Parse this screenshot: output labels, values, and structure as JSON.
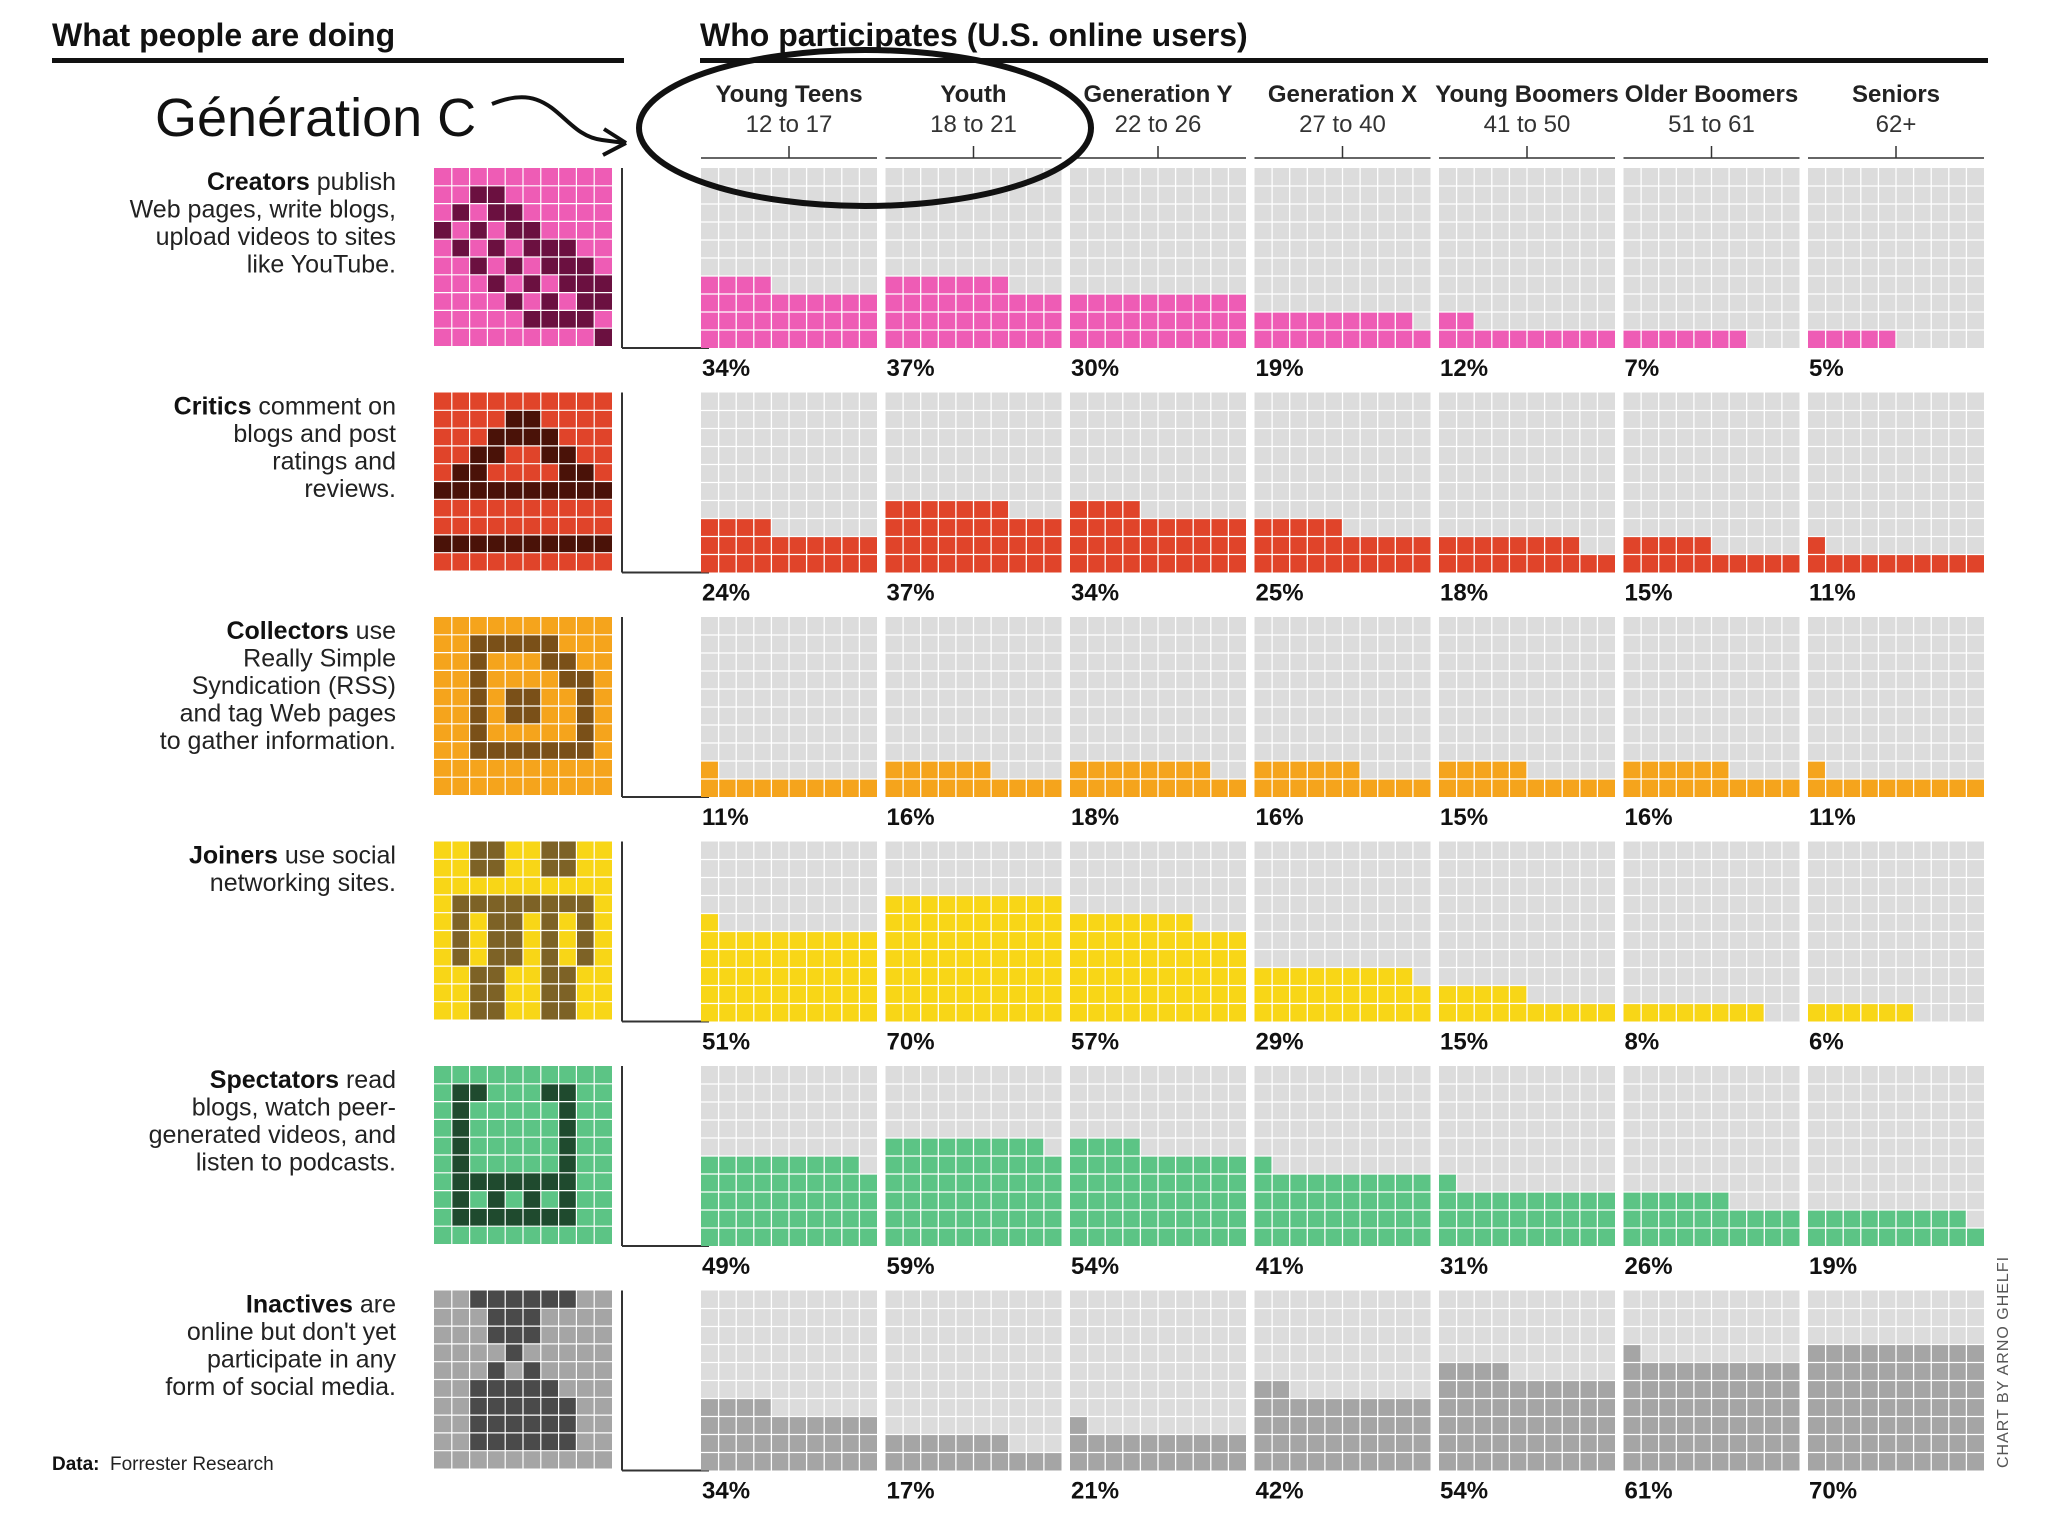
{
  "titles": {
    "left": "What people are doing",
    "right": "Who participates (U.S. online users)"
  },
  "annotation": {
    "text": "Génération C"
  },
  "source": {
    "label": "Data:",
    "value": "Forrester Research"
  },
  "credit": "CHART BY ARNO GHELFI",
  "colors": {
    "grid_bg": "#dcdcdc",
    "grid_line": "#ffffff",
    "axis": "#333333"
  },
  "chart_data": {
    "type": "table",
    "title": "Who participates (U.S. online users)",
    "unit": "% of age group",
    "columns": [
      {
        "name": "Young Teens",
        "range": "12 to 17"
      },
      {
        "name": "Youth",
        "range": "18 to 21"
      },
      {
        "name": "Generation Y",
        "range": "22 to 26"
      },
      {
        "name": "Generation X",
        "range": "27 to 40"
      },
      {
        "name": "Young Boomers",
        "range": "41 to 50"
      },
      {
        "name": "Older Boomers",
        "range": "51 to 61"
      },
      {
        "name": "Seniors",
        "range": "62+"
      }
    ],
    "rows": [
      {
        "name": "Creators",
        "description": [
          "Creators publish",
          "Web pages, write blogs,",
          "upload videos to sites",
          "like YouTube."
        ],
        "color": "#ee5cb5",
        "dark_color": "#6b1040",
        "icon": "creators-icon",
        "values": [
          34,
          37,
          30,
          19,
          12,
          7,
          5
        ],
        "labels": [
          "34%",
          "37%",
          "30%",
          "19%",
          "12%",
          "7%",
          "5%"
        ]
      },
      {
        "name": "Critics",
        "description": [
          "Critics comment on",
          "blogs and post",
          "ratings and",
          "reviews."
        ],
        "color": "#e0442a",
        "dark_color": "#4a1208",
        "icon": "critics-icon",
        "values": [
          24,
          37,
          34,
          25,
          18,
          15,
          11
        ],
        "labels": [
          "24%",
          "37%",
          "34%",
          "25%",
          "18%",
          "15%",
          "11%"
        ]
      },
      {
        "name": "Collectors",
        "description": [
          "Collectors use",
          "Really Simple",
          "Syndication (RSS)",
          "and tag Web pages",
          "to gather information."
        ],
        "color": "#f5a41c",
        "dark_color": "#7a5018",
        "icon": "collectors-icon",
        "values": [
          11,
          16,
          18,
          16,
          15,
          16,
          11
        ],
        "labels": [
          "11%",
          "16%",
          "18%",
          "16%",
          "15%",
          "16%",
          "11%"
        ]
      },
      {
        "name": "Joiners",
        "description": [
          "Joiners use social",
          "networking sites."
        ],
        "color": "#f8d617",
        "dark_color": "#7d6226",
        "icon": "joiners-icon",
        "values": [
          51,
          70,
          57,
          29,
          15,
          8,
          6
        ],
        "labels": [
          "51%",
          "70%",
          "57%",
          "29%",
          "15%",
          "8%",
          "6%"
        ]
      },
      {
        "name": "Spectators",
        "description": [
          "Spectators read",
          "blogs, watch peer-",
          "generated videos, and",
          "listen to podcasts."
        ],
        "color": "#5cc485",
        "dark_color": "#1f4a2e",
        "icon": "spectators-icon",
        "values": [
          49,
          59,
          54,
          41,
          31,
          26,
          19
        ],
        "labels": [
          "49%",
          "59%",
          "54%",
          "41%",
          "31%",
          "26%",
          "19%"
        ]
      },
      {
        "name": "Inactives",
        "description": [
          "Inactives are",
          "online but don't yet",
          "participate in any",
          "form of social media."
        ],
        "color": "#a5a5a5",
        "dark_color": "#4a4a4a",
        "icon": "inactives-icon",
        "values": [
          34,
          17,
          21,
          42,
          54,
          61,
          70
        ],
        "labels": [
          "34%",
          "17%",
          "21%",
          "42%",
          "54%",
          "61%",
          "70%"
        ]
      }
    ]
  }
}
